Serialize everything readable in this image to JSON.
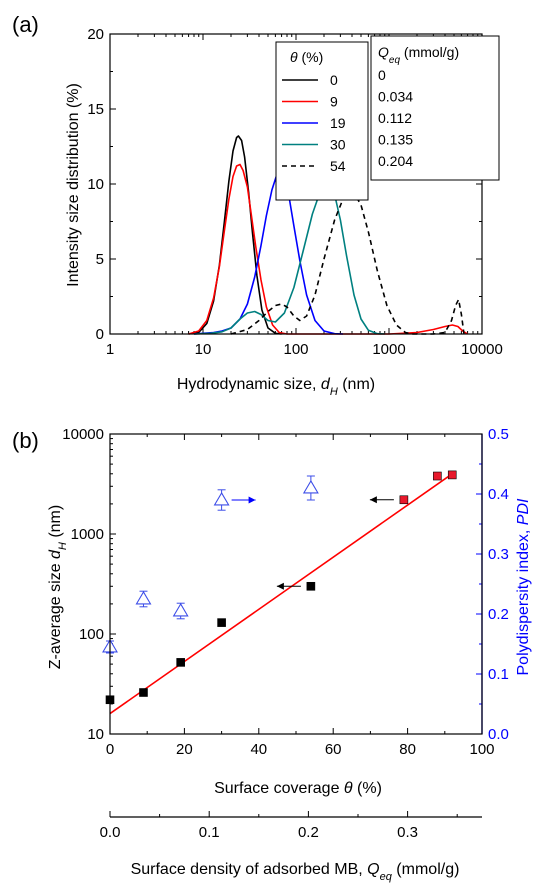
{
  "colors": {
    "black": "#000000",
    "red": "#ff0000",
    "blue": "#0000ff",
    "teal": "#008080",
    "fit_line": "#ff0000",
    "pdi_marker": "#3b4ce8",
    "highlight_square": "#e8192c"
  },
  "chart_data": [
    {
      "panel": "(a)",
      "type": "line",
      "xlabel_main": "Hydrodynamic size, ",
      "xlabel_var": "d",
      "xlabel_sub": "H",
      "xlabel_unit": " (nm)",
      "ylabel": "Intensity size distribution (%)",
      "xscale": "log",
      "xlim": [
        1,
        10000
      ],
      "ylim": [
        0,
        20
      ],
      "xticks": [
        1,
        10,
        100,
        1000,
        10000
      ],
      "xtick_labels": [
        "1",
        "10",
        "100",
        "1000",
        "10000"
      ],
      "yticks": [
        0,
        5,
        10,
        15,
        20
      ],
      "ytick_labels": [
        "0",
        "5",
        "10",
        "15",
        "20"
      ],
      "legend": {
        "theta_header_var": "θ",
        "theta_header_unit": " (%)",
        "q_header_var": "Q",
        "q_header_sub": "eq",
        "q_header_unit": " (mmol/g)",
        "placement": "top-right"
      },
      "series": [
        {
          "name": "0",
          "q_eq": "0",
          "color": "#000000",
          "dash": "none",
          "x": [
            7,
            9,
            11,
            13,
            15,
            17,
            19,
            21,
            23,
            24,
            26,
            28,
            31,
            34,
            38,
            43,
            50,
            60,
            70
          ],
          "y": [
            0,
            0.1,
            0.7,
            2.2,
            4.6,
            7.5,
            10.2,
            12.2,
            13.1,
            13.2,
            12.9,
            11.8,
            9.4,
            6.8,
            3.9,
            1.6,
            0.4,
            0.05,
            0
          ]
        },
        {
          "name": "9",
          "q_eq": "0.034",
          "color": "#ff0000",
          "dash": "none",
          "x": [
            7,
            9,
            11,
            13,
            15,
            17,
            19,
            21,
            23,
            25,
            27,
            30,
            33,
            37,
            42,
            48,
            56,
            66,
            80,
            100,
            200,
            500,
            1000,
            2000,
            3000,
            4000,
            4800,
            5500,
            6200,
            7000
          ],
          "y": [
            0,
            0.2,
            0.9,
            2.4,
            4.5,
            6.9,
            9.0,
            10.5,
            11.2,
            11.3,
            10.9,
            9.8,
            8.0,
            5.8,
            3.6,
            1.8,
            0.6,
            0.1,
            0,
            0,
            0,
            0,
            0,
            0.1,
            0.3,
            0.5,
            0.6,
            0.5,
            0.2,
            0
          ]
        },
        {
          "name": "19",
          "q_eq": "0.112",
          "color": "#0000ff",
          "dash": "none",
          "x": [
            8,
            10,
            13,
            16,
            20,
            25,
            30,
            36,
            42,
            48,
            55,
            62,
            68,
            75,
            85,
            95,
            110,
            130,
            160,
            200,
            260,
            320
          ],
          "y": [
            0,
            0.05,
            0.1,
            0.2,
            0.4,
            1.0,
            2.0,
            3.8,
            5.9,
            7.9,
            9.6,
            10.6,
            10.8,
            10.4,
            9.0,
            7.2,
            4.9,
            2.6,
            0.9,
            0.2,
            0.02,
            0
          ]
        },
        {
          "name": "30",
          "q_eq": "0.135",
          "color": "#008080",
          "dash": "none",
          "x": [
            8,
            12,
            16,
            20,
            25,
            30,
            36,
            42,
            50,
            60,
            75,
            95,
            120,
            150,
            180,
            210,
            235,
            260,
            300,
            350,
            420,
            500,
            600,
            750,
            900
          ],
          "y": [
            0,
            0.05,
            0.15,
            0.4,
            1.0,
            1.4,
            1.5,
            1.3,
            0.9,
            0.8,
            1.4,
            3.1,
            5.6,
            8.0,
            9.4,
            9.9,
            9.8,
            9.3,
            7.6,
            5.2,
            2.6,
            1.0,
            0.25,
            0.02,
            0
          ]
        },
        {
          "name": "54",
          "q_eq": "0.204",
          "color": "#000000",
          "dash": "5,4",
          "x": [
            20,
            30,
            40,
            50,
            60,
            70,
            80,
            95,
            110,
            130,
            160,
            200,
            260,
            320,
            380,
            430,
            500,
            600,
            750,
            950,
            1200,
            1500,
            1800,
            2200,
            3000,
            4000,
            4700,
            5200,
            5600,
            6000,
            6400
          ],
          "y": [
            0,
            0.3,
            0.9,
            1.5,
            1.9,
            2.0,
            1.8,
            1.2,
            0.9,
            1.2,
            2.6,
            5.0,
            7.6,
            9.0,
            9.4,
            9.3,
            8.6,
            6.8,
            4.2,
            1.9,
            0.6,
            0.1,
            0,
            0,
            0,
            0.1,
            0.9,
            1.9,
            2.3,
            1.3,
            0
          ]
        }
      ]
    },
    {
      "panel": "(b)",
      "type": "scatter",
      "xlabel_main": "Surface coverage ",
      "xlabel_var": "θ",
      "xlabel_unit": " (%)",
      "ylabel_main": "Z-average size ",
      "ylabel_var": "d",
      "ylabel_sub": "H",
      "ylabel_unit": " (nm)",
      "y2label_main": "Polydispersity index, ",
      "y2label_var": "PDI",
      "x2label_main": "Surface density of adsorbed MB, ",
      "x2label_var": "Q",
      "x2label_sub": "eq",
      "x2label_unit": " (mmol/g)",
      "xlim": [
        0,
        100
      ],
      "yscale": "log",
      "ylim": [
        10,
        10000
      ],
      "y2lim": [
        0,
        0.5
      ],
      "x2lim": [
        0,
        0.375
      ],
      "xticks": [
        0,
        20,
        40,
        60,
        80,
        100
      ],
      "xtick_labels": [
        "0",
        "20",
        "40",
        "60",
        "80",
        "100"
      ],
      "yticks": [
        10,
        100,
        1000,
        10000
      ],
      "ytick_labels": [
        "10",
        "100",
        "1000",
        "10000"
      ],
      "y2ticks": [
        0,
        0.1,
        0.2,
        0.3,
        0.4,
        0.5
      ],
      "y2tick_labels": [
        "0.0",
        "0.1",
        "0.2",
        "0.3",
        "0.4",
        "0.5"
      ],
      "x2ticks": [
        0,
        0.1,
        0.2,
        0.3
      ],
      "x2tick_labels": [
        "0.0",
        "0.1",
        "0.2",
        "0.3"
      ],
      "size_points": [
        {
          "x": 0,
          "y": 22,
          "color": "#000000"
        },
        {
          "x": 9,
          "y": 26,
          "color": "#000000"
        },
        {
          "x": 19,
          "y": 52,
          "color": "#000000"
        },
        {
          "x": 30,
          "y": 130,
          "color": "#000000"
        },
        {
          "x": 54,
          "y": 300,
          "color": "#000000"
        },
        {
          "x": 79,
          "y": 2200,
          "color": "#e8192c"
        },
        {
          "x": 88,
          "y": 3800,
          "color": "#e8192c"
        },
        {
          "x": 92,
          "y": 3900,
          "color": "#e8192c"
        }
      ],
      "pdi_points": [
        {
          "x": 0,
          "y": 0.145,
          "err": 0.01
        },
        {
          "x": 9,
          "y": 0.225,
          "err": 0.013
        },
        {
          "x": 19,
          "y": 0.205,
          "err": 0.013
        },
        {
          "x": 30,
          "y": 0.39,
          "err": 0.017
        },
        {
          "x": 54,
          "y": 0.41,
          "err": 0.02
        }
      ],
      "fit_line": {
        "x": [
          0,
          92
        ],
        "y": [
          16,
          4000
        ]
      },
      "axis_arrows": [
        {
          "from_x": 30,
          "from_pdi": 0.39,
          "direction": "right",
          "color": "#0000ff"
        },
        {
          "from_x": 54,
          "from_y": 300,
          "direction": "left",
          "color": "#000000"
        },
        {
          "from_x": 79,
          "from_y": 2200,
          "direction": "left",
          "color": "#000000"
        }
      ]
    }
  ]
}
